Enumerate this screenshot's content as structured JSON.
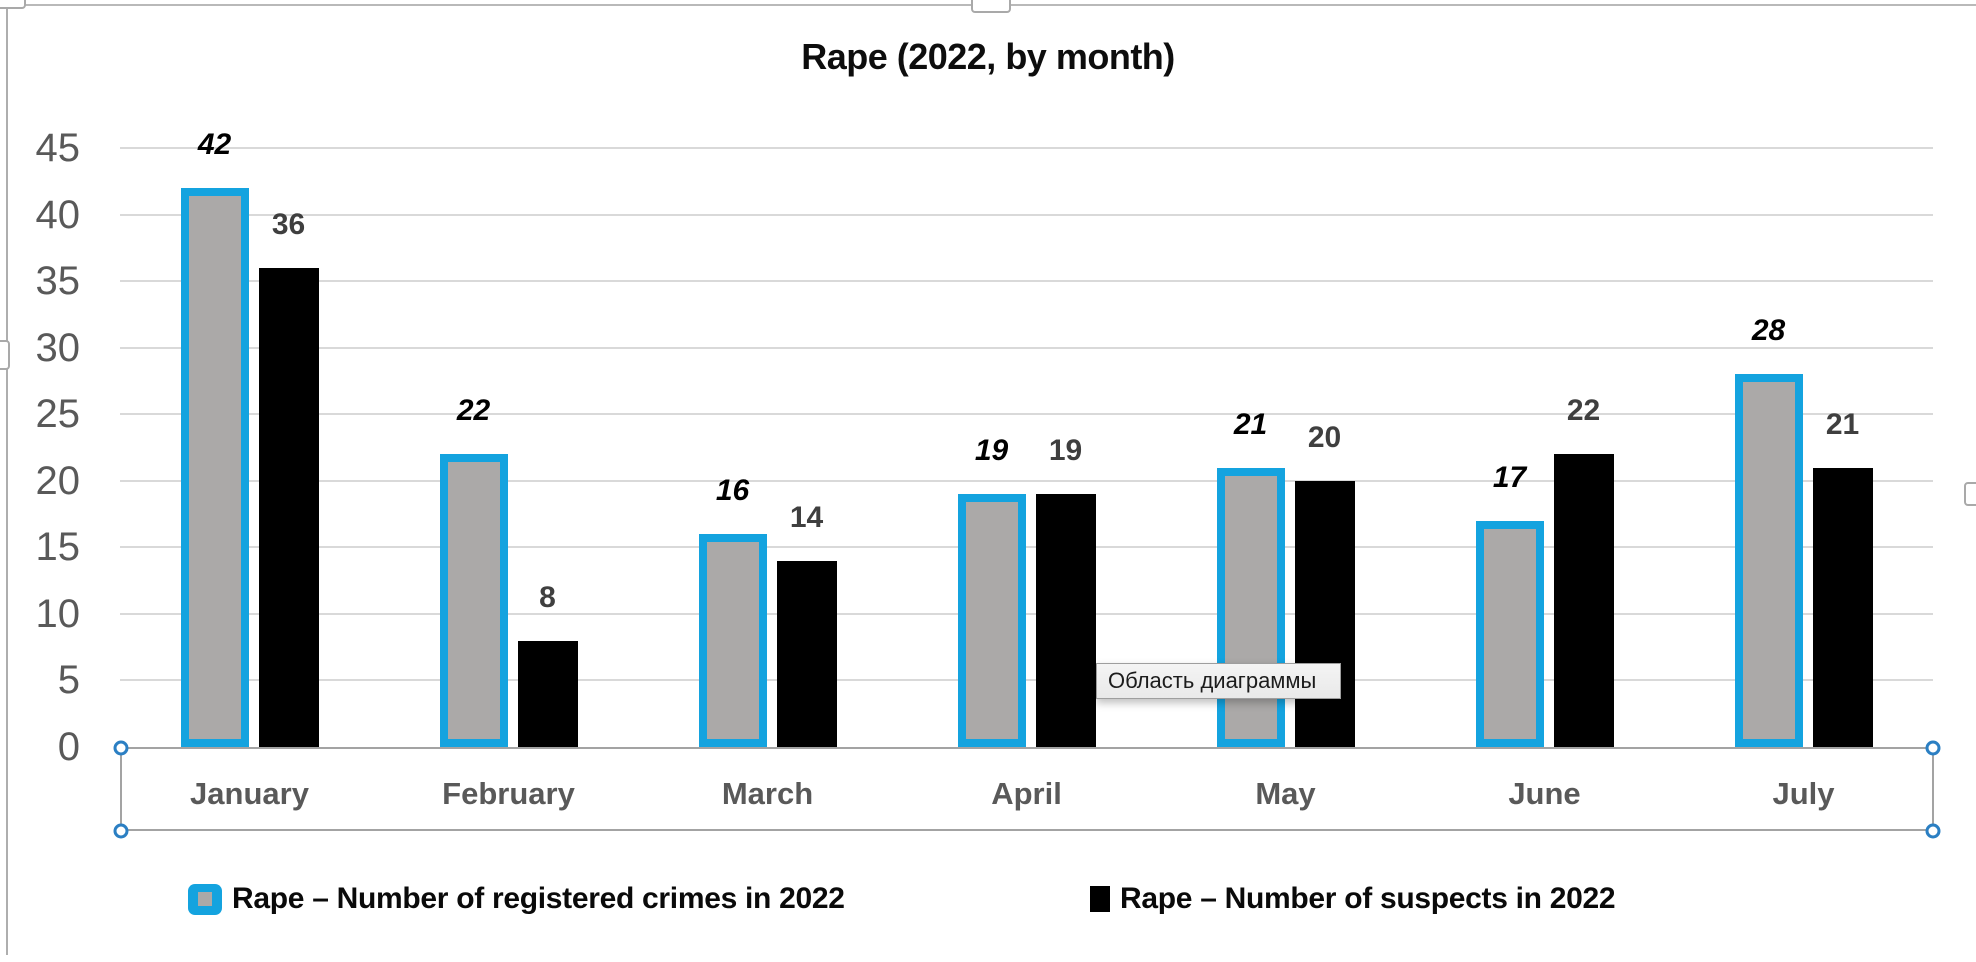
{
  "title": "Rape (2022, by month)",
  "tooltip": {
    "text": "Область диаграммы"
  },
  "legend": [
    {
      "label": "Rape – Number of registered crimes in 2022",
      "swatch": "gray-with-cyan-outline"
    },
    {
      "label": "Rape – Number of suspects in 2022",
      "swatch": "black"
    }
  ],
  "colors": {
    "series1_fill": "#aba9a8",
    "series1_outline": "#14a3df",
    "series2_fill": "#000000",
    "axis_text": "#595959",
    "gridline": "#d9d9d9",
    "selection_handle": "#2b7fc3"
  },
  "chart_data": {
    "type": "bar",
    "title": "Rape (2022, by month)",
    "categories": [
      "January",
      "February",
      "March",
      "April",
      "May",
      "June",
      "July"
    ],
    "series": [
      {
        "name": "Rape – Number of registered crimes in 2022",
        "values": [
          42,
          22,
          16,
          19,
          21,
          17,
          28
        ],
        "label_style": "bold-italic-black"
      },
      {
        "name": "Rape – Number of suspects in 2022",
        "values": [
          36,
          8,
          14,
          19,
          20,
          22,
          21
        ],
        "label_style": "bold-dark-gray"
      }
    ],
    "y_ticks": [
      0,
      5,
      10,
      15,
      20,
      25,
      30,
      35,
      40,
      45
    ],
    "ylim": [
      0,
      45
    ],
    "xlabel": "",
    "ylabel": "",
    "grid": true,
    "data_labels": true,
    "legend_position": "bottom",
    "x_axis_selected": true
  }
}
